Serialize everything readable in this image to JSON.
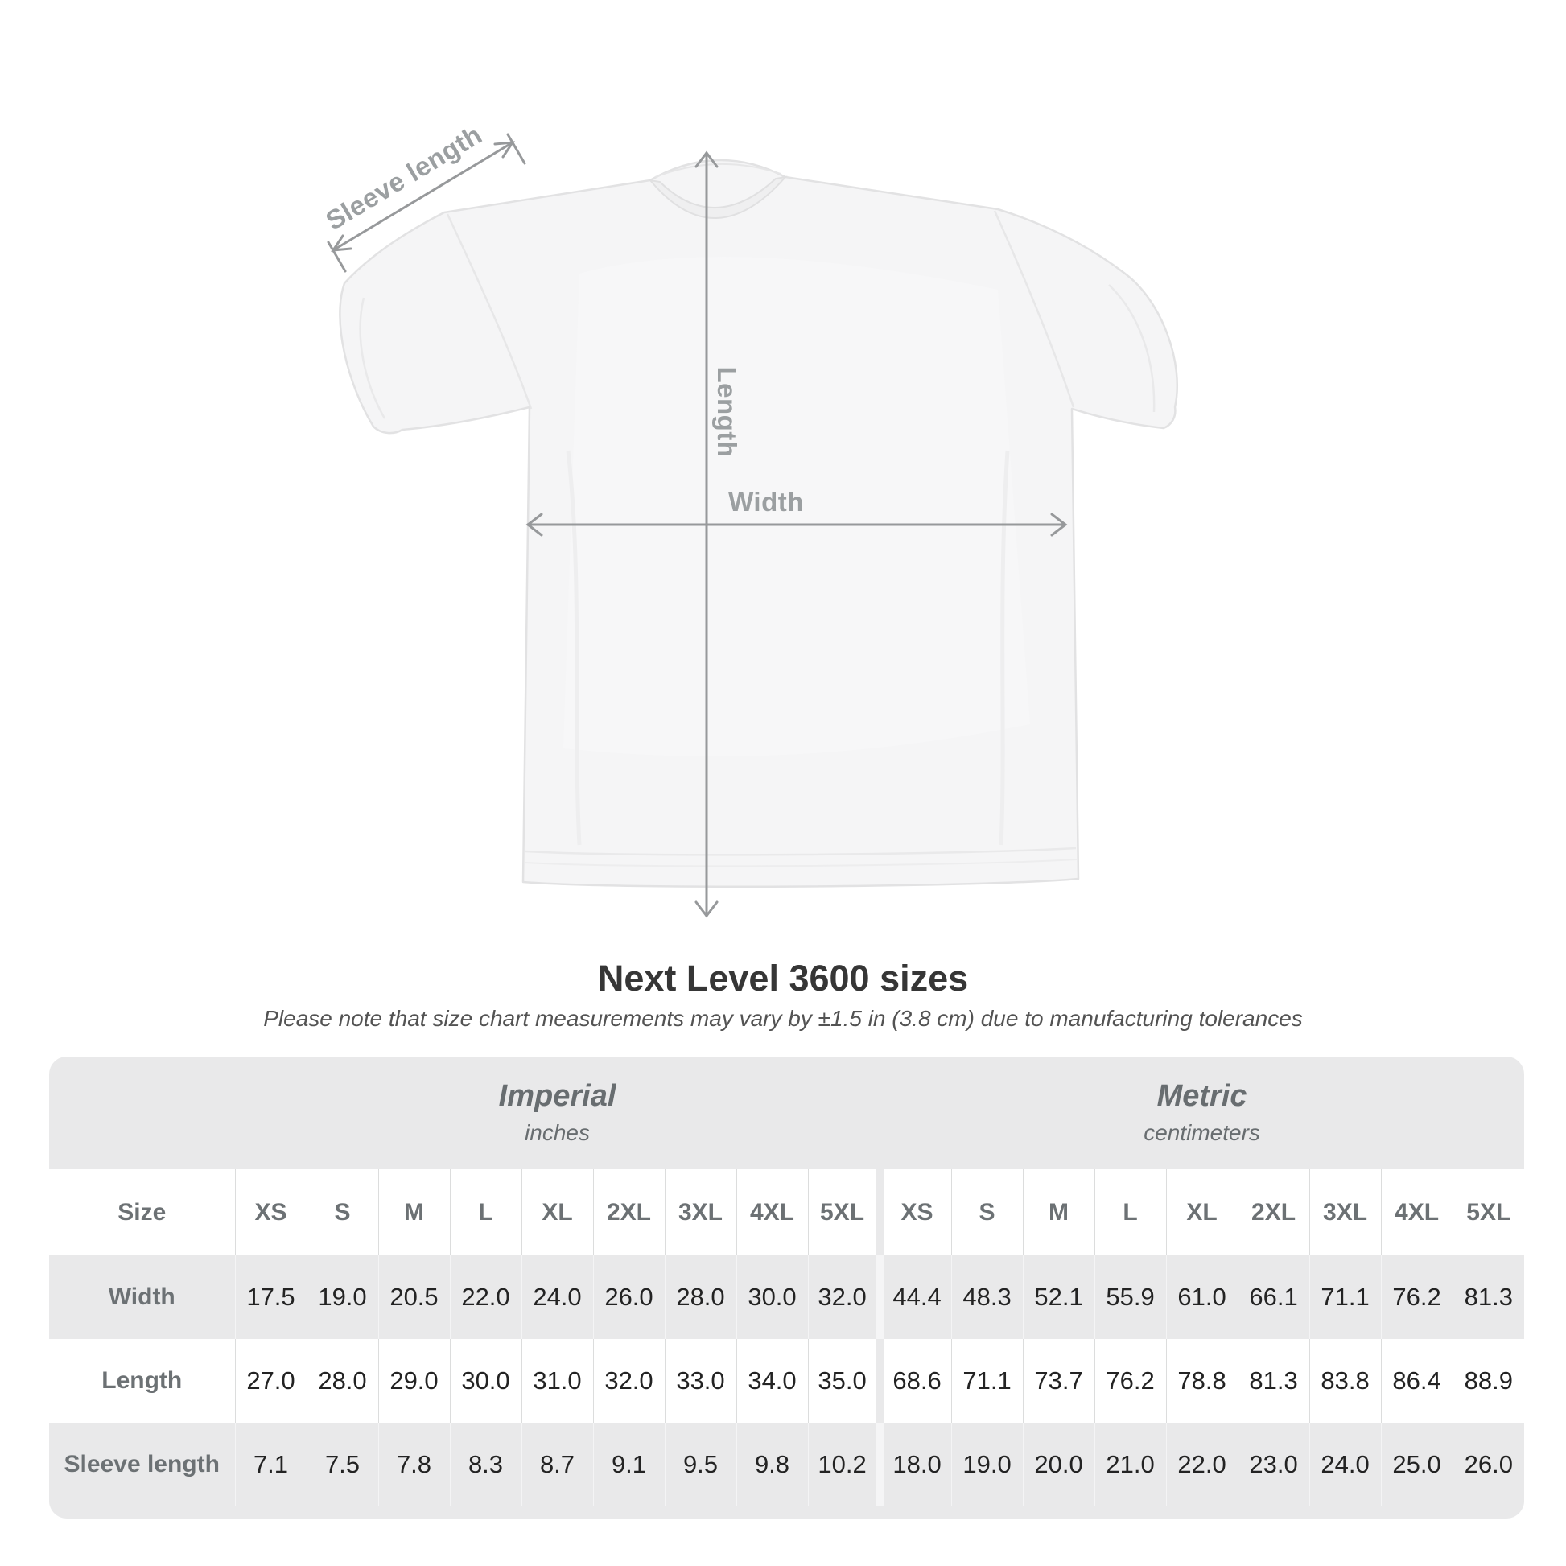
{
  "diagram": {
    "sleeve_label": "Sleeve length",
    "length_label": "Length",
    "width_label": "Width"
  },
  "heading": {
    "title": "Next Level 3600 sizes",
    "note": "Please note that size chart measurements may vary by ±1.5 in (3.8 cm) due to manufacturing tolerances"
  },
  "size_chart": {
    "corner_label": "Size",
    "groups": [
      {
        "label": "Imperial",
        "unit": "inches"
      },
      {
        "label": "Metric",
        "unit": "centimeters"
      }
    ],
    "sizes": [
      "XS",
      "S",
      "M",
      "L",
      "XL",
      "2XL",
      "3XL",
      "4XL",
      "5XL"
    ],
    "rows": [
      {
        "label": "Width",
        "imperial": [
          "17.5",
          "19.0",
          "20.5",
          "22.0",
          "24.0",
          "26.0",
          "28.0",
          "30.0",
          "32.0"
        ],
        "metric": [
          "44.4",
          "48.3",
          "52.1",
          "55.9",
          "61.0",
          "66.1",
          "71.1",
          "76.2",
          "81.3"
        ]
      },
      {
        "label": "Length",
        "imperial": [
          "27.0",
          "28.0",
          "29.0",
          "30.0",
          "31.0",
          "32.0",
          "33.0",
          "34.0",
          "35.0"
        ],
        "metric": [
          "68.6",
          "71.1",
          "73.7",
          "76.2",
          "78.8",
          "81.3",
          "83.8",
          "86.4",
          "88.9"
        ]
      },
      {
        "label": "Sleeve length",
        "imperial": [
          "7.1",
          "7.5",
          "7.8",
          "8.3",
          "8.7",
          "9.1",
          "9.5",
          "9.8",
          "10.2"
        ],
        "metric": [
          "18.0",
          "19.0",
          "20.0",
          "21.0",
          "22.0",
          "23.0",
          "24.0",
          "25.0",
          "26.0"
        ]
      }
    ]
  },
  "chart_data": {
    "type": "table",
    "title": "Next Level 3600 sizes",
    "column_groups": [
      "Imperial (inches)",
      "Metric (centimeters)"
    ],
    "columns": [
      "Size",
      "XS",
      "S",
      "M",
      "L",
      "XL",
      "2XL",
      "3XL",
      "4XL",
      "5XL",
      "XS",
      "S",
      "M",
      "L",
      "XL",
      "2XL",
      "3XL",
      "4XL",
      "5XL"
    ],
    "rows": [
      [
        "Width",
        17.5,
        19.0,
        20.5,
        22.0,
        24.0,
        26.0,
        28.0,
        30.0,
        32.0,
        44.4,
        48.3,
        52.1,
        55.9,
        61.0,
        66.1,
        71.1,
        76.2,
        81.3
      ],
      [
        "Length",
        27.0,
        28.0,
        29.0,
        30.0,
        31.0,
        32.0,
        33.0,
        34.0,
        35.0,
        68.6,
        71.1,
        73.7,
        76.2,
        78.8,
        81.3,
        83.8,
        86.4,
        88.9
      ],
      [
        "Sleeve length",
        7.1,
        7.5,
        7.8,
        8.3,
        8.7,
        9.1,
        9.5,
        9.8,
        10.2,
        18.0,
        19.0,
        20.0,
        21.0,
        22.0,
        23.0,
        24.0,
        25.0,
        26.0
      ]
    ]
  },
  "colors": {
    "annotation": "#97999b",
    "card_bg": "#e9e9ea",
    "row_white": "#ffffff",
    "separator": "#dcdddd",
    "header_text": "#6c7174",
    "value_text": "#232323",
    "title_text": "#363636"
  }
}
